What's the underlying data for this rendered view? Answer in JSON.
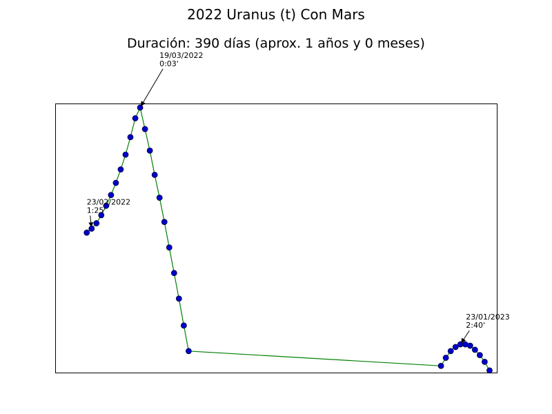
{
  "chart_data": {
    "type": "line",
    "title": "2022 Uranus (t) Con Mars",
    "subtitle": "Duración: 390 días (aprox. 1 años y 0 meses)",
    "axes_visible": false,
    "ylim": [
      0,
      10
    ],
    "line_color": "#008000",
    "marker_face_color": "#0000cc",
    "marker_edge_color": "#000033",
    "series": [
      {
        "points": [
          {
            "x": 0,
            "y": 5.2
          },
          {
            "x": 1,
            "y": 5.35
          },
          {
            "x": 2,
            "y": 5.55
          },
          {
            "x": 3,
            "y": 5.85
          },
          {
            "x": 4,
            "y": 6.2
          },
          {
            "x": 5,
            "y": 6.6
          },
          {
            "x": 6,
            "y": 7.05
          },
          {
            "x": 7,
            "y": 7.55
          },
          {
            "x": 8,
            "y": 8.1
          },
          {
            "x": 9,
            "y": 8.75
          },
          {
            "x": 10,
            "y": 9.45
          },
          {
            "x": 11,
            "y": 9.85
          },
          {
            "x": 12,
            "y": 9.05
          },
          {
            "x": 13,
            "y": 8.25
          },
          {
            "x": 14,
            "y": 7.35
          },
          {
            "x": 15,
            "y": 6.5
          },
          {
            "x": 16,
            "y": 5.6
          },
          {
            "x": 17,
            "y": 4.65
          },
          {
            "x": 18,
            "y": 3.7
          },
          {
            "x": 19,
            "y": 2.75
          },
          {
            "x": 20,
            "y": 1.75
          },
          {
            "x": 21,
            "y": 0.8
          },
          {
            "x": 73,
            "y": 0.25
          },
          {
            "x": 74,
            "y": 0.55
          },
          {
            "x": 75,
            "y": 0.8
          },
          {
            "x": 76,
            "y": 0.95
          },
          {
            "x": 77,
            "y": 1.05
          },
          {
            "x": 78,
            "y": 1.05
          },
          {
            "x": 79,
            "y": 1.0
          },
          {
            "x": 80,
            "y": 0.85
          },
          {
            "x": 81,
            "y": 0.65
          },
          {
            "x": 82,
            "y": 0.4
          },
          {
            "x": 83,
            "y": 0.08
          }
        ]
      }
    ],
    "annotations": [
      {
        "date": "23/02/2022",
        "value": "1:25'",
        "point_index": 1
      },
      {
        "date": "19/03/2022",
        "value": "0:03'",
        "point_index": 11
      },
      {
        "date": "23/01/2023",
        "value": "2:40'",
        "point_index": 77
      }
    ]
  }
}
